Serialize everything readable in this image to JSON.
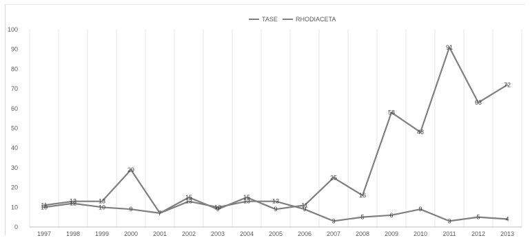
{
  "chart_data": {
    "type": "line",
    "title": "",
    "xlabel": "",
    "ylabel": "",
    "ylim": [
      0,
      100
    ],
    "yticks": [
      0,
      10,
      20,
      30,
      40,
      50,
      60,
      70,
      80,
      90,
      100
    ],
    "categories": [
      "1997",
      "1998",
      "1999",
      "2000",
      "2001",
      "2002",
      "2003",
      "2004",
      "2005",
      "2006",
      "2007",
      "2008",
      "2009",
      "2010",
      "2011",
      "2012",
      "2013"
    ],
    "grid": "vertical",
    "legend": "top-center",
    "series": [
      {
        "name": "TASE",
        "color": "#7f7f7f",
        "values": [
          11,
          13,
          13,
          29,
          7,
          15,
          9,
          15,
          9,
          11,
          25,
          16,
          58,
          48,
          91,
          63,
          72
        ],
        "labels": [
          "11",
          "13",
          "13",
          "29",
          "7",
          "15",
          "9",
          "15",
          "9",
          "11",
          "25",
          "16",
          "58",
          "48",
          "91",
          "63",
          "72"
        ]
      },
      {
        "name": "RHODIACETA",
        "color": "#7f7f7f",
        "values": [
          10,
          12,
          10,
          9,
          7,
          13,
          10,
          13,
          13,
          9,
          3,
          5,
          6,
          9,
          3,
          5,
          4
        ],
        "labels": [
          "10",
          "12",
          "10",
          "9",
          "7",
          "13",
          "10",
          "13",
          "13",
          "9",
          "3",
          "5",
          "6",
          "9",
          "3",
          "5",
          "4"
        ]
      }
    ]
  }
}
